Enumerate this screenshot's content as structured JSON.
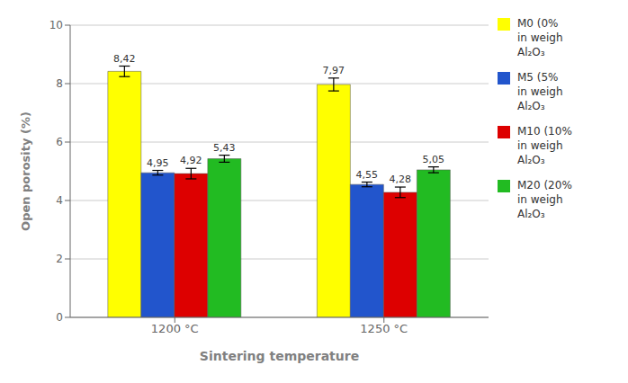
{
  "chart_data": {
    "type": "bar",
    "xlabel": "Sintering temperature",
    "ylabel": "Open porosity (%)",
    "categories": [
      "1200 °C",
      "1250 °C"
    ],
    "series": [
      {
        "name": "M0 (0%\nin weigh\nAl₂O₃",
        "color": "#FFFF00",
        "values": [
          8.42,
          7.97
        ],
        "errors": [
          0.18,
          0.22
        ],
        "value_labels": [
          "8,42",
          "7,97"
        ]
      },
      {
        "name": "M5 (5%\nin weigh\nAl₂O₃",
        "color": "#2255CC",
        "values": [
          4.95,
          4.55
        ],
        "errors": [
          0.08,
          0.08
        ],
        "value_labels": [
          "4,95",
          "4,55"
        ]
      },
      {
        "name": "M10 (10%\nin weigh\nAl₂O₃",
        "color": "#DD0000",
        "values": [
          4.92,
          4.28
        ],
        "errors": [
          0.18,
          0.18
        ],
        "value_labels": [
          "4,92",
          "4,28"
        ]
      },
      {
        "name": "M20 (20%\nin weigh\nAl₂O₃",
        "color": "#22BB22",
        "values": [
          5.43,
          5.05
        ],
        "errors": [
          0.12,
          0.1
        ],
        "value_labels": [
          "5,43",
          "5,05"
        ]
      }
    ],
    "ylim": [
      0,
      10
    ],
    "yticks": [
      0,
      2,
      4,
      6,
      8,
      10
    ],
    "grid": true,
    "legend": "right",
    "data_labels": true
  }
}
